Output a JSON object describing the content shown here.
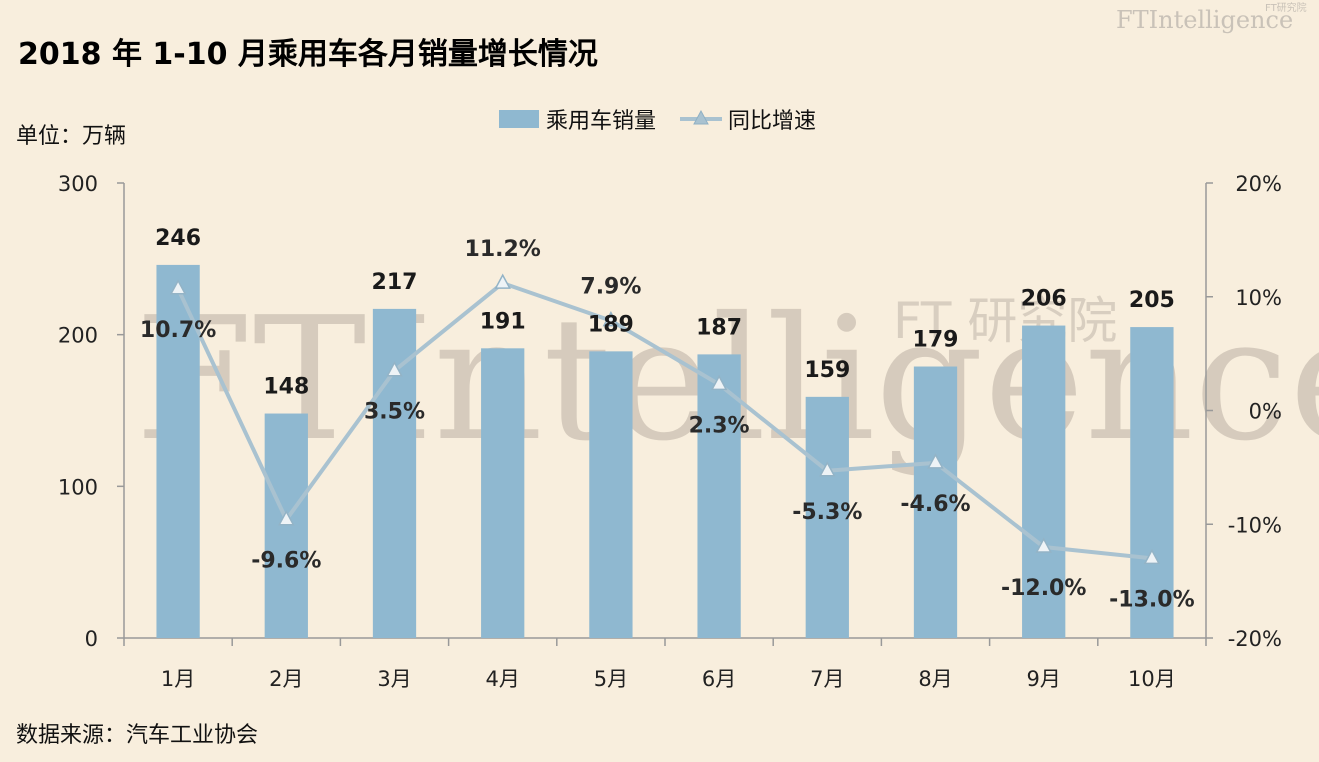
{
  "title": "2018 年 1-10 月乘用车各月销量增长情况",
  "brand": {
    "main": "FTIntelligence",
    "sub": "FT研究院"
  },
  "watermark": {
    "main": "FTIntelligence",
    "sub": "FT 研究院"
  },
  "unit_label": "单位：万辆",
  "source_label": "数据来源：汽车工业协会",
  "colors": {
    "bar": "#8fb8d0",
    "line": "#a9c2d0",
    "background": "#f8eedd"
  },
  "chart_data": {
    "type": "bar",
    "title": "2018 年 1-10 月乘用车各月销量增长情况",
    "categories": [
      "1月",
      "2月",
      "3月",
      "4月",
      "5月",
      "6月",
      "7月",
      "8月",
      "9月",
      "10月"
    ],
    "series": [
      {
        "name": "乘用车销量",
        "type": "bar",
        "axis": "left",
        "values": [
          246,
          148,
          217,
          191,
          189,
          187,
          159,
          179,
          206,
          205
        ],
        "labels": [
          "246",
          "148",
          "217",
          "191",
          "189",
          "187",
          "159",
          "179",
          "206",
          "205"
        ]
      },
      {
        "name": "同比增速",
        "type": "line",
        "axis": "right",
        "marker": "triangle",
        "values": [
          10.7,
          -9.6,
          3.5,
          11.2,
          7.9,
          2.3,
          -5.3,
          -4.6,
          -12.0,
          -13.0
        ],
        "labels": [
          "10.7%",
          "-9.6%",
          "3.5%",
          "11.2%",
          "7.9%",
          "2.3%",
          "-5.3%",
          "-4.6%",
          "-12.0%",
          "-13.0%"
        ]
      }
    ],
    "left_axis": {
      "ylim": [
        0,
        300
      ],
      "ticks": [
        "0",
        "100",
        "200",
        "300"
      ]
    },
    "right_axis": {
      "ylim": [
        -20,
        20
      ],
      "ticks": [
        "-20%",
        "-10%",
        "0%",
        "10%",
        "20%"
      ]
    },
    "legend": {
      "position": "top-center"
    },
    "grid": false
  }
}
